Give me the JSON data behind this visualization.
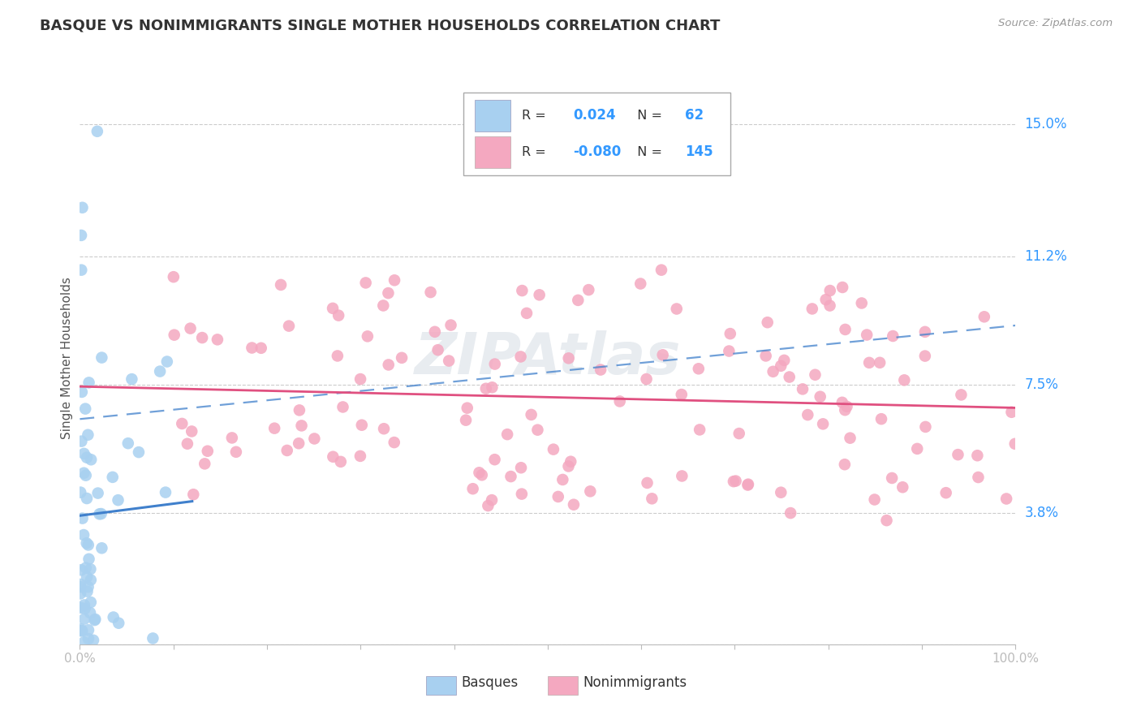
{
  "title": "BASQUE VS NONIMMIGRANTS SINGLE MOTHER HOUSEHOLDS CORRELATION CHART",
  "source": "Source: ZipAtlas.com",
  "ylabel": "Single Mother Households",
  "xlim": [
    0.0,
    1.0
  ],
  "ylim": [
    0.0,
    0.165
  ],
  "ytick_values": [
    0.0,
    0.038,
    0.075,
    0.112,
    0.15
  ],
  "ytick_labels": [
    "3.8%",
    "7.5%",
    "11.2%",
    "15.0%"
  ],
  "xtick_values": [
    0.0,
    0.1,
    0.2,
    0.3,
    0.4,
    0.5,
    0.6,
    0.7,
    0.8,
    0.9,
    1.0
  ],
  "xtick_labels": [
    "0.0%",
    "",
    "",
    "",
    "",
    "",
    "",
    "",
    "",
    "",
    "100.0%"
  ],
  "basque_color": "#a8d0f0",
  "nonimmigrant_color": "#f4a8c0",
  "basque_line_color": "#4080cc",
  "nonimmigrant_line_color": "#e05080",
  "legend_r_basque": "0.024",
  "legend_n_basque": "62",
  "legend_r_nonimmigrant": "-0.080",
  "legend_n_nonimmigrant": "145",
  "r_n_color": "#3399ff",
  "background_color": "#ffffff",
  "grid_color": "#cccccc",
  "label_color": "#3399ff",
  "tick_color": "#666666",
  "title_color": "#333333",
  "source_color": "#999999",
  "ylabel_color": "#555555",
  "watermark": "ZIPAtlas",
  "watermark_color": "#e8ecf0"
}
